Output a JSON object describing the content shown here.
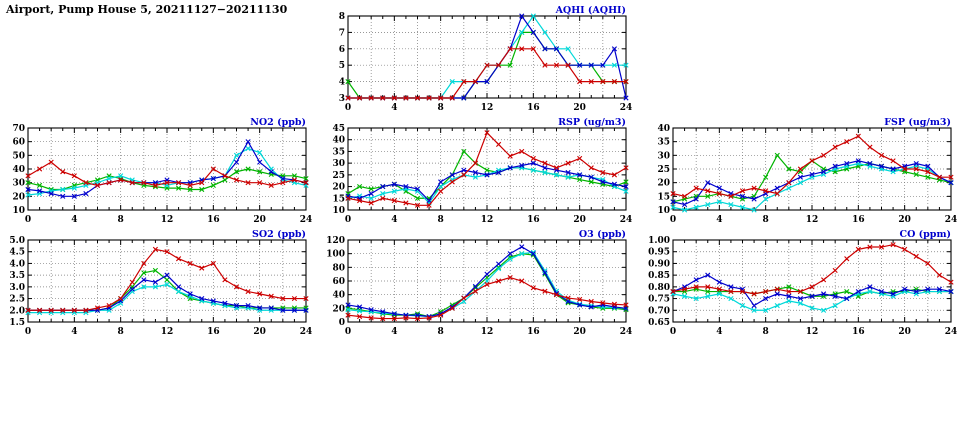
{
  "title": "Airport, Pump House 5, 20211127−20211130",
  "palette": {
    "red": "#cc0000",
    "green": "#00b400",
    "blue": "#0000cc",
    "cyan": "#00d8d8"
  },
  "x_axis": {
    "min": 0,
    "max": 24,
    "major_ticks": [
      0,
      4,
      8,
      12,
      16,
      20,
      24
    ]
  },
  "chart_data": [
    {
      "id": "aqhi",
      "title": "AQHI (AQHI)",
      "type": "line",
      "xlim": [
        0,
        24
      ],
      "ylim": [
        3,
        8
      ],
      "yticks": [
        3,
        4,
        5,
        6,
        7,
        8
      ],
      "ylabels": [
        "3",
        "4",
        "5",
        "6",
        "7",
        "8"
      ],
      "series": [
        {
          "name": "green",
          "color": "#00b400",
          "values": [
            4,
            3,
            3,
            3,
            3,
            3,
            3,
            3,
            3,
            3,
            3,
            4,
            4,
            5,
            5,
            7,
            7,
            6,
            6,
            5,
            5,
            5,
            4,
            4,
            4
          ]
        },
        {
          "name": "cyan",
          "color": "#00d8d8",
          "values": [
            3,
            3,
            3,
            3,
            3,
            3,
            3,
            3,
            3,
            4,
            4,
            4,
            5,
            5,
            6,
            7,
            8,
            7,
            6,
            6,
            5,
            5,
            5,
            5,
            5
          ]
        },
        {
          "name": "blue",
          "color": "#0000cc",
          "values": [
            3,
            3,
            3,
            3,
            3,
            3,
            3,
            3,
            3,
            3,
            3,
            4,
            4,
            5,
            6,
            8,
            7,
            6,
            6,
            5,
            5,
            5,
            5,
            6,
            3
          ]
        },
        {
          "name": "red",
          "color": "#cc0000",
          "values": [
            3,
            3,
            3,
            3,
            3,
            3,
            3,
            3,
            3,
            3,
            4,
            4,
            5,
            5,
            6,
            6,
            6,
            5,
            5,
            5,
            4,
            4,
            4,
            4,
            4
          ]
        }
      ]
    },
    {
      "id": "no2",
      "title": "NO2 (ppb)",
      "type": "line",
      "xlim": [
        0,
        24
      ],
      "ylim": [
        10,
        70
      ],
      "yticks": [
        10,
        20,
        30,
        40,
        50,
        60,
        70
      ],
      "ylabels": [
        "10",
        "20",
        "30",
        "40",
        "50",
        "60",
        "70"
      ],
      "series": [
        {
          "name": "green",
          "color": "#00b400",
          "values": [
            30,
            28,
            25,
            25,
            28,
            30,
            32,
            35,
            33,
            30,
            28,
            27,
            26,
            26,
            25,
            25,
            28,
            32,
            38,
            40,
            38,
            36,
            35,
            35,
            33
          ]
        },
        {
          "name": "cyan",
          "color": "#00d8d8",
          "values": [
            21,
            22,
            24,
            25,
            26,
            28,
            30,
            33,
            35,
            32,
            30,
            30,
            28,
            30,
            30,
            32,
            33,
            35,
            50,
            55,
            52,
            40,
            32,
            30,
            28
          ]
        },
        {
          "name": "blue",
          "color": "#0000cc",
          "values": [
            25,
            24,
            22,
            20,
            20,
            22,
            28,
            30,
            32,
            30,
            30,
            30,
            32,
            30,
            30,
            32,
            33,
            35,
            45,
            60,
            45,
            38,
            33,
            32,
            30
          ]
        },
        {
          "name": "red",
          "color": "#cc0000",
          "values": [
            35,
            40,
            45,
            38,
            35,
            30,
            28,
            30,
            32,
            30,
            30,
            28,
            30,
            30,
            28,
            30,
            40,
            35,
            32,
            30,
            30,
            28,
            30,
            32,
            30
          ]
        }
      ]
    },
    {
      "id": "rsp",
      "title": "RSP (ug/m3)",
      "type": "line",
      "xlim": [
        0,
        24
      ],
      "ylim": [
        10,
        45
      ],
      "yticks": [
        10,
        15,
        20,
        25,
        30,
        35,
        40,
        45
      ],
      "ylabels": [
        "10",
        "15",
        "20",
        "25",
        "30",
        "35",
        "40",
        "45"
      ],
      "series": [
        {
          "name": "green",
          "color": "#00b400",
          "values": [
            17,
            20,
            19,
            20,
            21,
            18,
            15,
            15,
            20,
            25,
            35,
            30,
            27,
            26,
            28,
            28,
            27,
            26,
            25,
            24,
            23,
            22,
            21,
            20,
            22
          ]
        },
        {
          "name": "cyan",
          "color": "#00d8d8",
          "values": [
            15,
            16,
            15,
            17,
            18,
            19,
            18,
            13,
            20,
            23,
            25,
            24,
            25,
            27,
            28,
            28,
            27,
            26,
            25,
            24,
            25,
            24,
            23,
            20,
            18
          ]
        },
        {
          "name": "blue",
          "color": "#0000cc",
          "values": [
            16,
            15,
            17,
            20,
            21,
            20,
            19,
            14,
            22,
            25,
            27,
            26,
            25,
            26,
            28,
            29,
            30,
            28,
            27,
            26,
            25,
            24,
            22,
            21,
            20
          ]
        },
        {
          "name": "red",
          "color": "#cc0000",
          "values": [
            15,
            14,
            13,
            15,
            14,
            13,
            12,
            12,
            18,
            22,
            25,
            30,
            43,
            38,
            33,
            35,
            32,
            30,
            28,
            30,
            32,
            28,
            26,
            25,
            28
          ]
        }
      ]
    },
    {
      "id": "fsp",
      "title": "FSP (ug/m3)",
      "type": "line",
      "xlim": [
        0,
        24
      ],
      "ylim": [
        10,
        40
      ],
      "yticks": [
        10,
        15,
        20,
        25,
        30,
        35,
        40
      ],
      "ylabels": [
        "10",
        "15",
        "20",
        "25",
        "30",
        "35",
        "40"
      ],
      "series": [
        {
          "name": "green",
          "color": "#00b400",
          "values": [
            13,
            14,
            15,
            15,
            16,
            15,
            14,
            15,
            22,
            30,
            25,
            24,
            28,
            25,
            24,
            25,
            26,
            27,
            26,
            25,
            24,
            23,
            22,
            21,
            20
          ]
        },
        {
          "name": "cyan",
          "color": "#00d8d8",
          "values": [
            11,
            10,
            11,
            12,
            13,
            12,
            11,
            10,
            14,
            16,
            18,
            20,
            22,
            23,
            25,
            26,
            27,
            26,
            25,
            24,
            25,
            26,
            25,
            22,
            20
          ]
        },
        {
          "name": "blue",
          "color": "#0000cc",
          "values": [
            13,
            12,
            14,
            20,
            18,
            16,
            15,
            14,
            16,
            18,
            20,
            22,
            23,
            24,
            26,
            27,
            28,
            27,
            26,
            25,
            26,
            27,
            26,
            22,
            20
          ]
        },
        {
          "name": "red",
          "color": "#cc0000",
          "values": [
            16,
            15,
            18,
            17,
            16,
            15,
            17,
            18,
            17,
            16,
            20,
            25,
            28,
            30,
            33,
            35,
            37,
            33,
            30,
            28,
            25,
            25,
            24,
            22,
            22
          ]
        }
      ]
    },
    {
      "id": "so2",
      "title": "SO2 (ppb)",
      "type": "line",
      "xlim": [
        0,
        24
      ],
      "ylim": [
        1.5,
        5.0
      ],
      "yticks": [
        1.5,
        2.0,
        2.5,
        3.0,
        3.5,
        4.0,
        4.5,
        5.0
      ],
      "ylabels": [
        "1.5",
        "2.0",
        "2.5",
        "3.0",
        "3.5",
        "4.0",
        "4.5",
        "5.0"
      ],
      "series": [
        {
          "name": "green",
          "color": "#00b400",
          "values": [
            2.0,
            2.0,
            2.0,
            2.0,
            2.0,
            2.0,
            2.0,
            2.1,
            2.5,
            3.0,
            3.6,
            3.7,
            3.3,
            2.8,
            2.5,
            2.4,
            2.3,
            2.2,
            2.2,
            2.1,
            2.1,
            2.1,
            2.1,
            2.1,
            2.1
          ]
        },
        {
          "name": "cyan",
          "color": "#00d8d8",
          "values": [
            1.9,
            1.9,
            1.9,
            1.9,
            1.9,
            1.9,
            2.0,
            2.0,
            2.3,
            2.8,
            3.0,
            3.0,
            3.1,
            2.8,
            2.6,
            2.4,
            2.3,
            2.2,
            2.1,
            2.1,
            2.0,
            2.0,
            2.0,
            2.0,
            2.0
          ]
        },
        {
          "name": "blue",
          "color": "#0000cc",
          "values": [
            2.0,
            2.0,
            2.0,
            2.0,
            2.0,
            2.0,
            2.0,
            2.1,
            2.4,
            2.9,
            3.3,
            3.2,
            3.5,
            3.0,
            2.7,
            2.5,
            2.4,
            2.3,
            2.2,
            2.2,
            2.1,
            2.1,
            2.0,
            2.0,
            2.0
          ]
        },
        {
          "name": "red",
          "color": "#cc0000",
          "values": [
            2.0,
            2.0,
            2.0,
            2.0,
            2.0,
            2.0,
            2.1,
            2.2,
            2.5,
            3.2,
            4.0,
            4.6,
            4.5,
            4.2,
            4.0,
            3.8,
            4.0,
            3.3,
            3.0,
            2.8,
            2.7,
            2.6,
            2.5,
            2.5,
            2.5
          ]
        }
      ]
    },
    {
      "id": "o3",
      "title": "O3 (ppb)",
      "type": "line",
      "xlim": [
        0,
        24
      ],
      "ylim": [
        0,
        120
      ],
      "yticks": [
        0,
        20,
        40,
        60,
        80,
        100,
        120
      ],
      "ylabels": [
        "0",
        "20",
        "40",
        "60",
        "80",
        "100",
        "120"
      ],
      "series": [
        {
          "name": "green",
          "color": "#00b400",
          "values": [
            20,
            18,
            15,
            12,
            10,
            10,
            12,
            8,
            15,
            25,
            35,
            50,
            65,
            80,
            95,
            100,
            98,
            70,
            40,
            28,
            25,
            22,
            20,
            20,
            18
          ]
        },
        {
          "name": "cyan",
          "color": "#00d8d8",
          "values": [
            18,
            16,
            15,
            13,
            12,
            10,
            9,
            8,
            11,
            20,
            30,
            45,
            60,
            78,
            92,
            100,
            102,
            75,
            45,
            32,
            26,
            24,
            22,
            21,
            20
          ]
        },
        {
          "name": "blue",
          "color": "#0000cc",
          "values": [
            25,
            22,
            18,
            15,
            12,
            10,
            10,
            8,
            12,
            22,
            35,
            52,
            70,
            85,
            100,
            110,
            100,
            72,
            42,
            30,
            25,
            22,
            25,
            22,
            20
          ]
        },
        {
          "name": "red",
          "color": "#cc0000",
          "values": [
            10,
            8,
            6,
            5,
            5,
            6,
            5,
            6,
            10,
            20,
            35,
            45,
            55,
            60,
            65,
            60,
            50,
            45,
            40,
            35,
            33,
            30,
            28,
            26,
            25
          ]
        }
      ]
    },
    {
      "id": "co",
      "title": "CO (ppm)",
      "type": "line",
      "xlim": [
        0,
        24
      ],
      "ylim": [
        0.65,
        1.0
      ],
      "yticks": [
        0.65,
        0.7,
        0.75,
        0.8,
        0.85,
        0.9,
        0.95,
        1.0
      ],
      "ylabels": [
        "0.65",
        "0.70",
        "0.75",
        "0.80",
        "0.85",
        "0.90",
        "0.95",
        "1.00"
      ],
      "series": [
        {
          "name": "green",
          "color": "#00b400",
          "values": [
            0.78,
            0.78,
            0.79,
            0.78,
            0.78,
            0.78,
            0.78,
            0.77,
            0.78,
            0.79,
            0.8,
            0.78,
            0.76,
            0.76,
            0.77,
            0.78,
            0.76,
            0.78,
            0.77,
            0.78,
            0.78,
            0.79,
            0.78,
            0.78,
            0.78
          ]
        },
        {
          "name": "cyan",
          "color": "#00d8d8",
          "values": [
            0.77,
            0.76,
            0.75,
            0.76,
            0.77,
            0.75,
            0.72,
            0.7,
            0.7,
            0.72,
            0.74,
            0.73,
            0.71,
            0.7,
            0.72,
            0.75,
            0.77,
            0.78,
            0.77,
            0.76,
            0.78,
            0.77,
            0.78,
            0.78,
            0.78
          ]
        },
        {
          "name": "blue",
          "color": "#0000cc",
          "values": [
            0.78,
            0.8,
            0.83,
            0.85,
            0.82,
            0.8,
            0.79,
            0.72,
            0.75,
            0.77,
            0.76,
            0.75,
            0.76,
            0.77,
            0.76,
            0.75,
            0.78,
            0.8,
            0.78,
            0.77,
            0.79,
            0.78,
            0.79,
            0.79,
            0.78
          ]
        },
        {
          "name": "red",
          "color": "#cc0000",
          "values": [
            0.78,
            0.79,
            0.8,
            0.8,
            0.79,
            0.78,
            0.78,
            0.77,
            0.78,
            0.79,
            0.78,
            0.78,
            0.8,
            0.83,
            0.87,
            0.92,
            0.96,
            0.97,
            0.97,
            0.98,
            0.96,
            0.93,
            0.9,
            0.85,
            0.82
          ]
        }
      ]
    }
  ]
}
